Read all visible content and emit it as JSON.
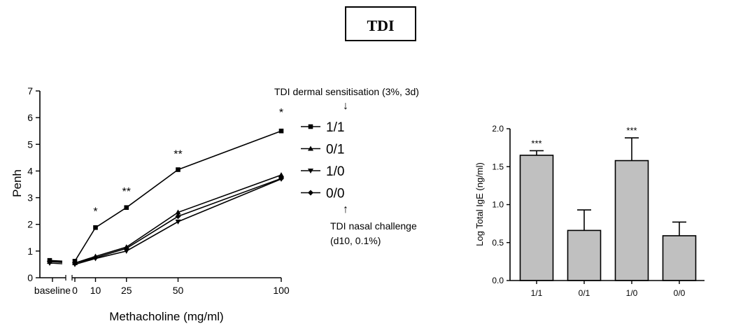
{
  "figure_title": "TDI",
  "annotations": {
    "top_line1": "TDI dermal sensitisation (3%, 3d)",
    "down_arrow": "↓",
    "up_arrow": "↑",
    "bottom_line1": "TDI nasal challenge",
    "bottom_line2": "(d10, 0.1%)"
  },
  "chart_data": [
    {
      "type": "line",
      "xlabel": "Methacholine (mg/ml)",
      "ylabel": "Penh",
      "ylim": [
        0,
        7
      ],
      "yticks": [
        "0",
        "1",
        "2",
        "3",
        "4",
        "5",
        "6",
        "7"
      ],
      "xticks": [
        "baseline",
        "0",
        "10",
        "25",
        "50",
        "100"
      ],
      "x": [
        0,
        10,
        25,
        50,
        100
      ],
      "baseline_values": {
        "1/1": 0.65,
        "0/1": 0.6,
        "1/0": 0.55,
        "0/0": 0.62
      },
      "series": [
        {
          "name": "1/1",
          "marker": "square",
          "values": [
            0.62,
            1.88,
            2.63,
            4.05,
            5.5
          ]
        },
        {
          "name": "0/1",
          "marker": "triangle-up",
          "values": [
            0.55,
            0.8,
            1.15,
            2.45,
            3.85
          ]
        },
        {
          "name": "1/0",
          "marker": "triangle-down",
          "values": [
            0.5,
            0.72,
            1.0,
            2.1,
            3.7
          ]
        },
        {
          "name": "0/0",
          "marker": "diamond",
          "values": [
            0.55,
            0.75,
            1.1,
            2.3,
            3.72
          ]
        }
      ],
      "significance": [
        {
          "x": 10,
          "label": "*",
          "y": 2.35
        },
        {
          "x": 25,
          "label": "**",
          "y": 3.1
        },
        {
          "x": 50,
          "label": "**",
          "y": 4.5
        },
        {
          "x": 100,
          "label": "*",
          "y": 6.05
        }
      ],
      "legend_placement": "right",
      "grid": false
    },
    {
      "type": "bar",
      "ylabel": "Log Total IgE (ng/ml)",
      "ylim": [
        0,
        2.0
      ],
      "yticks": [
        "0.0",
        "0.5",
        "1.0",
        "1.5",
        "2.0"
      ],
      "categories": [
        "1/1",
        "0/1",
        "1/0",
        "0/0"
      ],
      "values": [
        1.65,
        0.66,
        1.58,
        0.59
      ],
      "errors": [
        0.06,
        0.27,
        0.3,
        0.18
      ],
      "significance": [
        "***",
        "",
        "***",
        ""
      ],
      "bar_color": "#c0c0c0",
      "grid": false
    }
  ]
}
